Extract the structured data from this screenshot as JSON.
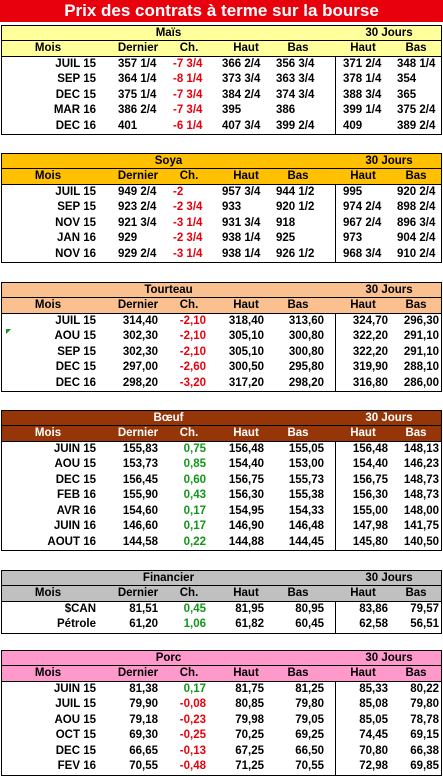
{
  "banner": "Prix des contrats à terme sur la bourse",
  "tables": [
    {
      "key": "mais",
      "title": "Maïs",
      "title30": "30 Jours",
      "headers": [
        "Mois",
        "Dernier",
        "Ch.",
        "Haut",
        "Bas",
        "Haut",
        "Bas"
      ],
      "colors": {
        "header": "#ffff9c",
        "body": "#ffffff"
      },
      "numeric": false,
      "rows": [
        {
          "mois": "JUIL 15",
          "dernier": "357 1/4",
          "ch": "-7 3/4",
          "haut": "366 2/4",
          "bas": "356 3/4",
          "haut30": "371 2/4",
          "bas30": "348 1/4",
          "dir": "neg"
        },
        {
          "mois": "SEP 15",
          "dernier": "364 1/4",
          "ch": "-8 1/4",
          "haut": "373 3/4",
          "bas": "363 3/4",
          "haut30": "378 1/4",
          "bas30": "354",
          "dir": "neg"
        },
        {
          "mois": "DEC 15",
          "dernier": "375 1/4",
          "ch": "-7 3/4",
          "haut": "384 2/4",
          "bas": "374 3/4",
          "haut30": "388 3/4",
          "bas30": "365",
          "dir": "neg"
        },
        {
          "mois": "MAR 16",
          "dernier": "386 2/4",
          "ch": "-7 3/4",
          "haut": "395",
          "bas": "386",
          "haut30": "399 1/4",
          "bas30": "375 2/4",
          "dir": "neg"
        },
        {
          "mois": "DEC 16",
          "dernier": "401",
          "ch": "-6 1/4",
          "haut": "407 3/4",
          "bas": "399 2/4",
          "haut30": "409",
          "bas30": "389 2/4",
          "dir": "neg"
        }
      ]
    },
    {
      "key": "soya",
      "title": "Soya",
      "title30": "30 Jours",
      "headers": [
        "Mois",
        "Dernier",
        "Ch.",
        "Haut",
        "Bas",
        "Haut",
        "Bas"
      ],
      "colors": {
        "header": "#ffc000",
        "body": "#ffffff"
      },
      "numeric": false,
      "rows": [
        {
          "mois": "JUIL 15",
          "dernier": "949 2/4",
          "ch": "-2",
          "haut": "957 3/4",
          "bas": "944 1/2",
          "haut30": "995",
          "bas30": "920 2/4",
          "dir": "neg"
        },
        {
          "mois": "SEP 15",
          "dernier": "923 2/4",
          "ch": "-2 3/4",
          "haut": "933",
          "bas": "920 1/2",
          "haut30": "974 2/4",
          "bas30": "898 2/4",
          "dir": "neg"
        },
        {
          "mois": "NOV 15",
          "dernier": "921 3/4",
          "ch": "-3 1/4",
          "haut": "931 3/4",
          "bas": "918",
          "haut30": "967 2/4",
          "bas30": "896 3/4",
          "dir": "neg"
        },
        {
          "mois": "JAN 16",
          "dernier": "929",
          "ch": "-2 3/4",
          "haut": "938 1/4",
          "bas": "925",
          "haut30": "973",
          "bas30": "904 2/4",
          "dir": "neg"
        },
        {
          "mois": "NOV 16",
          "dernier": "929 2/4",
          "ch": "-3 1/4",
          "haut": "938 1/4",
          "bas": "926 1/2",
          "haut30": "968 3/4",
          "bas30": "910 2/4",
          "dir": "neg"
        }
      ]
    },
    {
      "key": "tourteau",
      "title": "Tourteau",
      "title30": "30 Jours",
      "headers": [
        "Mois",
        "Dernier",
        "Ch.",
        "Haut",
        "Bas",
        "Haut",
        "Bas"
      ],
      "colors": {
        "header": "#fac090",
        "body": "#ffffff"
      },
      "numeric": true,
      "rows": [
        {
          "mois": "JUIL 15",
          "dernier": "314,40",
          "ch": "-2,10",
          "haut": "318,40",
          "bas": "313,60",
          "haut30": "324,70",
          "bas30": "296,30",
          "dir": "neg"
        },
        {
          "mois": "AOU 15",
          "dernier": "302,30",
          "ch": "-2,10",
          "haut": "305,10",
          "bas": "300,80",
          "haut30": "322,20",
          "bas30": "291,10",
          "dir": "neg",
          "marks": true
        },
        {
          "mois": "SEP 15",
          "dernier": "302,30",
          "ch": "-2,10",
          "haut": "305,10",
          "bas": "300,80",
          "haut30": "322,20",
          "bas30": "291,10",
          "dir": "neg"
        },
        {
          "mois": "DEC 15",
          "dernier": "297,00",
          "ch": "-2,60",
          "haut": "300,50",
          "bas": "295,80",
          "haut30": "319,90",
          "bas30": "288,10",
          "dir": "neg"
        },
        {
          "mois": "DEC 16",
          "dernier": "298,20",
          "ch": "-3,20",
          "haut": "317,20",
          "bas": "298,20",
          "haut30": "316,80",
          "bas30": "286,00",
          "dir": "neg"
        }
      ]
    },
    {
      "key": "boeuf",
      "title": "Bœuf",
      "title30": "30 Jours",
      "headers": [
        "Mois",
        "Dernier",
        "Ch.",
        "Haut",
        "Bas",
        "Haut",
        "Bas"
      ],
      "colors": {
        "header": "#963608",
        "body": "#ffffff",
        "headerText": "#ffffff"
      },
      "numeric": true,
      "rows": [
        {
          "mois": "JUIN 15",
          "dernier": "155,83",
          "ch": "0,75",
          "haut": "156,48",
          "bas": "155,05",
          "haut30": "156,48",
          "bas30": "148,13",
          "dir": "pos"
        },
        {
          "mois": "AOU 15",
          "dernier": "153,73",
          "ch": "0,85",
          "haut": "154,40",
          "bas": "153,00",
          "haut30": "154,40",
          "bas30": "146,23",
          "dir": "pos"
        },
        {
          "mois": "DEC 15",
          "dernier": "156,45",
          "ch": "0,60",
          "haut": "156,75",
          "bas": "155,73",
          "haut30": "156,75",
          "bas30": "148,73",
          "dir": "pos"
        },
        {
          "mois": "FEB 16",
          "dernier": "155,90",
          "ch": "0,43",
          "haut": "156,30",
          "bas": "155,38",
          "haut30": "156,30",
          "bas30": "148,73",
          "dir": "pos"
        },
        {
          "mois": "AVR 16",
          "dernier": "154,60",
          "ch": "0,17",
          "haut": "154,95",
          "bas": "154,33",
          "haut30": "155,00",
          "bas30": "148,00",
          "dir": "pos"
        },
        {
          "mois": "JUIN 16",
          "dernier": "146,60",
          "ch": "0,17",
          "haut": "146,90",
          "bas": "146,48",
          "haut30": "147,98",
          "bas30": "141,75",
          "dir": "pos"
        },
        {
          "mois": "AOUT 16",
          "dernier": "144,58",
          "ch": "0,22",
          "haut": "144,88",
          "bas": "144,45",
          "haut30": "145,80",
          "bas30": "140,50",
          "dir": "pos"
        }
      ]
    },
    {
      "key": "financier",
      "title": "Financier",
      "title30": "30 Jours",
      "headers": [
        "Mois",
        "Dernier",
        "Ch.",
        "Haut",
        "Bas",
        "Haut",
        "Bas"
      ],
      "colors": {
        "header": "#c0c0c0",
        "body": "#ffffff"
      },
      "numeric": true,
      "rows": [
        {
          "mois": "$CAN",
          "dernier": "81,51",
          "ch": "0,45",
          "haut": "81,95",
          "bas": "80,95",
          "haut30": "83,86",
          "bas30": "79,57",
          "dir": "pos"
        },
        {
          "mois": "Pétrole",
          "dernier": "61,20",
          "ch": "1,06",
          "haut": "61,82",
          "bas": "60,45",
          "haut30": "62,58",
          "bas30": "56,51",
          "dir": "pos"
        }
      ]
    },
    {
      "key": "porc",
      "title": "Porc",
      "title30": "30 Jours",
      "headers": [
        "Mois",
        "Dernier",
        "Ch.",
        "Haut",
        "Bas",
        "Haut",
        "Bas"
      ],
      "colors": {
        "header": "#ff99cc",
        "body": "#ffffff"
      },
      "numeric": true,
      "rows": [
        {
          "mois": "JUIN 15",
          "dernier": "81,38",
          "ch": "0,17",
          "haut": "81,75",
          "bas": "81,25",
          "haut30": "85,33",
          "bas30": "80,22",
          "dir": "pos"
        },
        {
          "mois": "JUIL 15",
          "dernier": "79,90",
          "ch": "-0,08",
          "haut": "80,85",
          "bas": "79,80",
          "haut30": "85,08",
          "bas30": "79,80",
          "dir": "neg"
        },
        {
          "mois": "AOU 15",
          "dernier": "79,18",
          "ch": "-0,23",
          "haut": "79,98",
          "bas": "79,05",
          "haut30": "85,05",
          "bas30": "78,78",
          "dir": "neg"
        },
        {
          "mois": "OCT 15",
          "dernier": "69,30",
          "ch": "-0,25",
          "haut": "70,25",
          "bas": "69,25",
          "haut30": "74,45",
          "bas30": "69,15",
          "dir": "neg"
        },
        {
          "mois": "DEC 15",
          "dernier": "66,65",
          "ch": "-0,13",
          "haut": "67,25",
          "bas": "66,50",
          "haut30": "70,80",
          "bas30": "66,38",
          "dir": "neg"
        },
        {
          "mois": "FEV 16",
          "dernier": "70,55",
          "ch": "-0,48",
          "haut": "71,25",
          "bas": "70,55",
          "haut30": "72,98",
          "bas30": "69,85",
          "dir": "neg"
        }
      ]
    }
  ]
}
